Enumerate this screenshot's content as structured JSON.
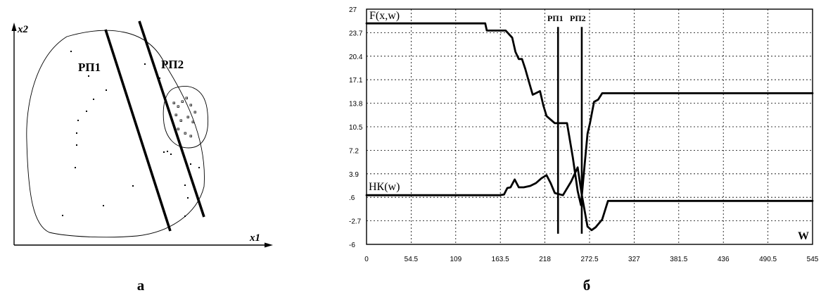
{
  "left_figure": {
    "axis_x_label": "x1",
    "axis_y_label": "x2",
    "plane1_label": "РП1",
    "plane2_label": "РП2",
    "caption": "а"
  },
  "right_figure": {
    "caption": "б",
    "series_f_label": "F(x,w)",
    "series_nk_label": "НК(w)",
    "plane1_label": "РП1",
    "plane2_label": "РП2",
    "x_axis_label": "W"
  },
  "chart_data": {
    "type": "line",
    "xlim": [
      0,
      545
    ],
    "ylim": [
      -6,
      27
    ],
    "x_ticks": [
      "0",
      "54.5",
      "109",
      "163.5",
      "218",
      "272.5",
      "327",
      "381.5",
      "436",
      "490.5",
      "545"
    ],
    "y_ticks": [
      "27",
      "23.7",
      "20.4",
      "17.1",
      "13.8",
      "10.5",
      "7.2",
      "3.9",
      ".6",
      "-2.7",
      "-6"
    ],
    "grid": true,
    "vertical_markers": [
      {
        "label": "РП1",
        "x": 234
      },
      {
        "label": "РП2",
        "x": 263
      }
    ],
    "series": [
      {
        "name": "F(x,w)",
        "x": [
          0,
          145,
          147,
          170,
          178,
          182,
          186,
          190,
          194,
          198,
          203,
          212,
          216,
          220,
          230,
          238,
          245,
          252,
          258,
          262,
          266,
          270,
          273,
          278,
          283,
          288,
          295,
          545
        ],
        "y": [
          25,
          25,
          24,
          24,
          23,
          21,
          20,
          20,
          18.6,
          17,
          15,
          15.5,
          13.5,
          12,
          11,
          11,
          11,
          6.2,
          1.5,
          -0.5,
          4.5,
          9.5,
          11,
          14,
          14.3,
          15.2,
          15.2,
          15.2
        ]
      },
      {
        "name": "НК(w)",
        "x": [
          0,
          162,
          168,
          172,
          176,
          181,
          186,
          192,
          200,
          207,
          214,
          220,
          225,
          230,
          240,
          250,
          258,
          263,
          270,
          275,
          280,
          288,
          295,
          545
        ],
        "y": [
          0.9,
          0.9,
          1.0,
          1.9,
          2.0,
          3.1,
          2.0,
          2.0,
          2.2,
          2.6,
          3.3,
          3.7,
          2.6,
          1.2,
          0.9,
          2.8,
          4.8,
          1.0,
          -3.5,
          -4.0,
          -3.6,
          -2.5,
          0.1,
          0.1
        ]
      }
    ]
  }
}
